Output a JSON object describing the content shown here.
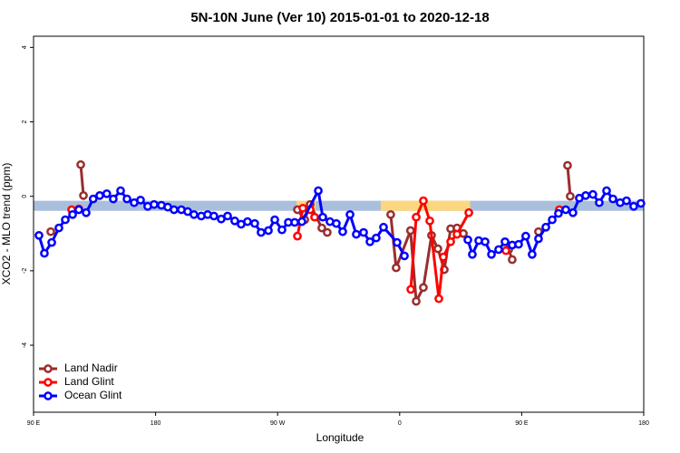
{
  "chart_data": {
    "type": "line",
    "title": "5N-10N June (Ver 10)   2015-01-01 to 2020-12-18",
    "x_label": "Longitude",
    "y_label": "XCO2 - MLO trend (ppm)",
    "xlim": [
      90,
      540
    ],
    "ylim": [
      -5.8,
      4.3
    ],
    "xticks": [
      {
        "value": 90,
        "label": "90 E"
      },
      180,
      {
        "value": 270,
        "label": "90 W"
      },
      {
        "value": 360,
        "label": "0"
      },
      {
        "value": 450,
        "label": "90 E"
      },
      {
        "value": 540,
        "label": "180"
      }
    ],
    "yticks": [
      -4,
      -2,
      0,
      2,
      4
    ],
    "band": [
      -0.12,
      -0.39
    ],
    "band_color": "#a9bfdc",
    "land_x": [
      [
        284,
        298
      ],
      [
        346,
        412
      ]
    ],
    "land_color": "#fcd77f",
    "legend": "bottom-left",
    "series": [
      {
        "name": "Land Nadir",
        "color": "#9b2d2d",
        "x": [
          102.7,
          null,
          124.8,
          126.8,
          null,
          284.6,
          290,
          294,
          302.6,
          306.6,
          null,
          353.4,
          357.4,
          368,
          372.2,
          377.5,
          383.5,
          388.2,
          392.9,
          397.6,
          402.3,
          407,
          null,
          440.4,
          443,
          null,
          462.4,
          null,
          483.8,
          485.8
        ],
        "values": [
          -0.95,
          null,
          0.85,
          0.02,
          null,
          -0.36,
          -0.63,
          -0.22,
          -0.85,
          -0.97,
          null,
          -0.49,
          -1.92,
          -0.92,
          -2.82,
          -2.45,
          -1.05,
          -1.41,
          -1.97,
          -0.87,
          -0.85,
          -1.0,
          null,
          -1.43,
          -1.7,
          null,
          -0.95,
          null,
          0.83,
          0.0
        ]
      },
      {
        "name": "Land Glint",
        "color": "#ff0000",
        "x": [
          118.1,
          123.4,
          null,
          284.6,
          288.6,
          294,
          297.3,
          null,
          368.2,
          372.2,
          377.5,
          382.2,
          388.9,
          392.2,
          397.6,
          402.3,
          411,
          null,
          438.4,
          null,
          477.8
        ],
        "values": [
          -0.36,
          -0.34,
          null,
          -1.07,
          -0.32,
          -0.36,
          -0.56,
          null,
          -2.5,
          -0.56,
          -0.12,
          -0.66,
          -2.75,
          -1.63,
          -1.22,
          -1.02,
          -0.44,
          null,
          -1.46,
          null,
          -0.36
        ]
      },
      {
        "name": "Ocean Glint",
        "color": "#0000ff",
        "x": [
          94,
          98,
          103.4,
          108.7,
          113.4,
          118.8,
          123.4,
          128.8,
          134,
          138.8,
          144,
          148.8,
          154.2,
          158.9,
          164.2,
          168.9,
          174.2,
          178.9,
          184.3,
          189,
          193.6,
          199,
          203.7,
          208.3,
          213.7,
          218.4,
          223,
          228.4,
          233.1,
          238.4,
          243.1,
          247.8,
          253.1,
          257.8,
          263.2,
          267.9,
          273.2,
          277.9,
          282.6,
          287.9,
          300,
          303.3,
          308.6,
          313.3,
          318,
          323.4,
          328,
          333.4,
          338.1,
          342.7,
          348.1,
          358.1,
          363.5,
          null,
          410.3,
          413.6,
          418.3,
          423,
          427.7,
          433,
          437.7,
          443,
          447.7,
          453,
          457.7,
          462.4,
          467.8,
          472.5,
          477.1,
          482.5,
          487.8,
          492.5,
          497.2,
          502.5,
          507.2,
          512.6,
          517.3,
          522.6,
          527.3,
          532.6,
          537.9
        ],
        "values": [
          -1.05,
          -1.53,
          -1.24,
          -0.85,
          -0.63,
          -0.49,
          -0.36,
          -0.44,
          -0.07,
          0.02,
          0.07,
          -0.07,
          0.15,
          -0.07,
          -0.17,
          -0.1,
          -0.27,
          -0.22,
          -0.24,
          -0.29,
          -0.36,
          -0.36,
          -0.41,
          -0.49,
          -0.53,
          -0.49,
          -0.53,
          -0.61,
          -0.53,
          -0.66,
          -0.75,
          -0.68,
          -0.73,
          -0.97,
          -0.92,
          -0.63,
          -0.9,
          -0.7,
          -0.7,
          -0.68,
          0.15,
          -0.56,
          -0.68,
          -0.73,
          -0.95,
          -0.49,
          -1.02,
          -0.97,
          -1.22,
          -1.12,
          -0.83,
          -1.24,
          -1.6,
          null,
          -1.17,
          -1.56,
          -1.19,
          -1.22,
          -1.56,
          -1.43,
          -1.22,
          -1.31,
          -1.29,
          -1.07,
          -1.56,
          -1.14,
          -0.83,
          -0.63,
          -0.46,
          -0.36,
          -0.44,
          -0.05,
          0.02,
          0.05,
          -0.17,
          0.15,
          -0.07,
          -0.17,
          -0.12,
          -0.27,
          -0.19
        ]
      }
    ]
  }
}
